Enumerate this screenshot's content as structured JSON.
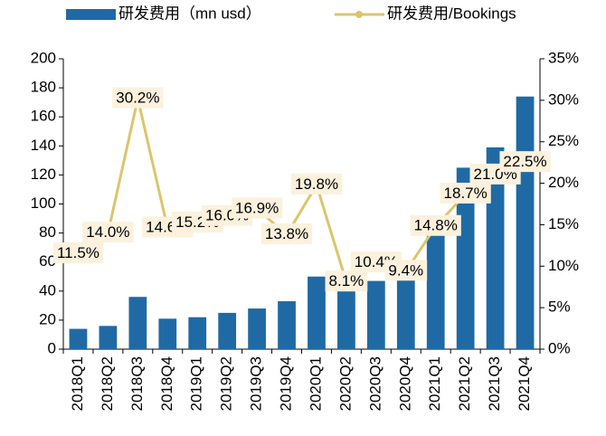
{
  "chart_data": {
    "type": "bar_line",
    "categories": [
      "2018Q1",
      "2018Q2",
      "2018Q3",
      "2018Q4",
      "2019Q1",
      "2019Q2",
      "2019Q3",
      "2019Q4",
      "2020Q1",
      "2020Q2",
      "2020Q3",
      "2020Q4",
      "2021Q1",
      "2021Q2",
      "2021Q3",
      "2021Q4"
    ],
    "series": [
      {
        "name": "研发费用（mn usd）",
        "color": "#1f6aa5",
        "type": "bar",
        "values": [
          14,
          16,
          36,
          21,
          22,
          25,
          28,
          33,
          50,
          42,
          47,
          58,
          82,
          125,
          139,
          174
        ]
      },
      {
        "name": "研发费用/Bookings",
        "color": "#dcc56a",
        "type": "line",
        "axis": "y2",
        "values": [
          11.5,
          14.0,
          30.2,
          14.6,
          15.2,
          16.0,
          16.9,
          13.8,
          19.8,
          8.1,
          10.4,
          9.4,
          14.8,
          18.7,
          21.0,
          22.5
        ],
        "value_labels": [
          "11.5%",
          "14.0%",
          "30.2%",
          "14.6%",
          "15.2%",
          "16.0%",
          "16.9%",
          "13.8%",
          "19.8%",
          "8.1%",
          "10.4%",
          "9.4%",
          "14.8%",
          "18.7%",
          "21.0%",
          "22.5%"
        ]
      }
    ],
    "ylim": [
      0,
      200
    ],
    "yticks": [
      0,
      20,
      40,
      60,
      80,
      100,
      120,
      140,
      160,
      180,
      200
    ],
    "y2lim": [
      0,
      35
    ],
    "y2ticks": [
      {
        "value": 0,
        "label": "0%"
      },
      {
        "value": 5,
        "label": "5%"
      },
      {
        "value": 10,
        "label": "10%"
      },
      {
        "value": 15,
        "label": "15%"
      },
      {
        "value": 20,
        "label": "20%"
      },
      {
        "value": 25,
        "label": "25%"
      },
      {
        "value": 30,
        "label": "30%"
      },
      {
        "value": 35,
        "label": "35%"
      }
    ],
    "grid": false
  }
}
